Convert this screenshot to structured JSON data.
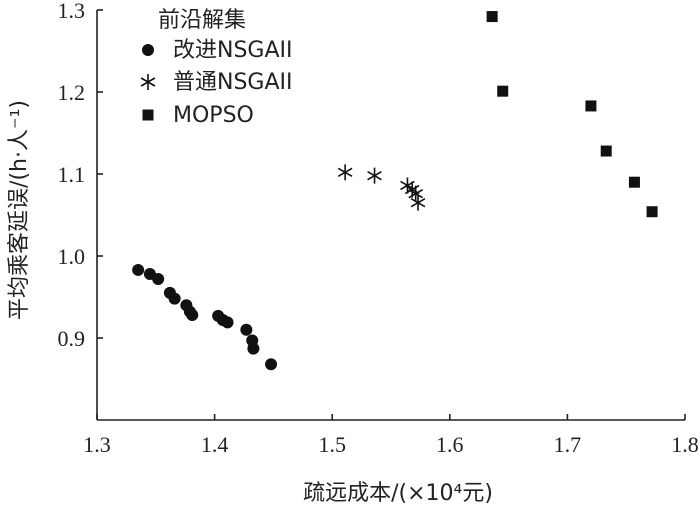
{
  "chart_data": {
    "type": "scatter",
    "xlabel": "疏远成本/(×10⁴元)",
    "ylabel": "平均乘客延误/(h·人⁻¹)",
    "xlim": [
      1.3,
      1.8
    ],
    "ylim": [
      0.8,
      1.3
    ],
    "xticks": [
      "1.3",
      "1.4",
      "1.5",
      "1.6",
      "1.7",
      "1.8"
    ],
    "yticks": [
      "0.9",
      "1.0",
      "1.1",
      "1.2",
      "1.3"
    ],
    "legend": {
      "title": "前沿解集",
      "placement": "top-left"
    },
    "series": [
      {
        "name": "改进NSGAII",
        "marker": "circle",
        "points": [
          [
            1.335,
            0.983
          ],
          [
            1.345,
            0.978
          ],
          [
            1.352,
            0.972
          ],
          [
            1.362,
            0.955
          ],
          [
            1.366,
            0.948
          ],
          [
            1.376,
            0.94
          ],
          [
            1.379,
            0.932
          ],
          [
            1.381,
            0.928
          ],
          [
            1.403,
            0.927
          ],
          [
            1.407,
            0.922
          ],
          [
            1.411,
            0.919
          ],
          [
            1.427,
            0.91
          ],
          [
            1.432,
            0.897
          ],
          [
            1.433,
            0.887
          ],
          [
            1.448,
            0.868
          ]
        ]
      },
      {
        "name": "普通NSGAII",
        "marker": "asterisk",
        "points": [
          [
            1.511,
            1.102
          ],
          [
            1.536,
            1.098
          ],
          [
            1.564,
            1.086
          ],
          [
            1.568,
            1.081
          ],
          [
            1.571,
            1.076
          ],
          [
            1.573,
            1.065
          ]
        ]
      },
      {
        "name": "MOPSO",
        "marker": "square",
        "points": [
          [
            1.636,
            1.292
          ],
          [
            1.645,
            1.201
          ],
          [
            1.72,
            1.183
          ],
          [
            1.733,
            1.128
          ],
          [
            1.757,
            1.09
          ],
          [
            1.772,
            1.054
          ]
        ]
      }
    ]
  }
}
